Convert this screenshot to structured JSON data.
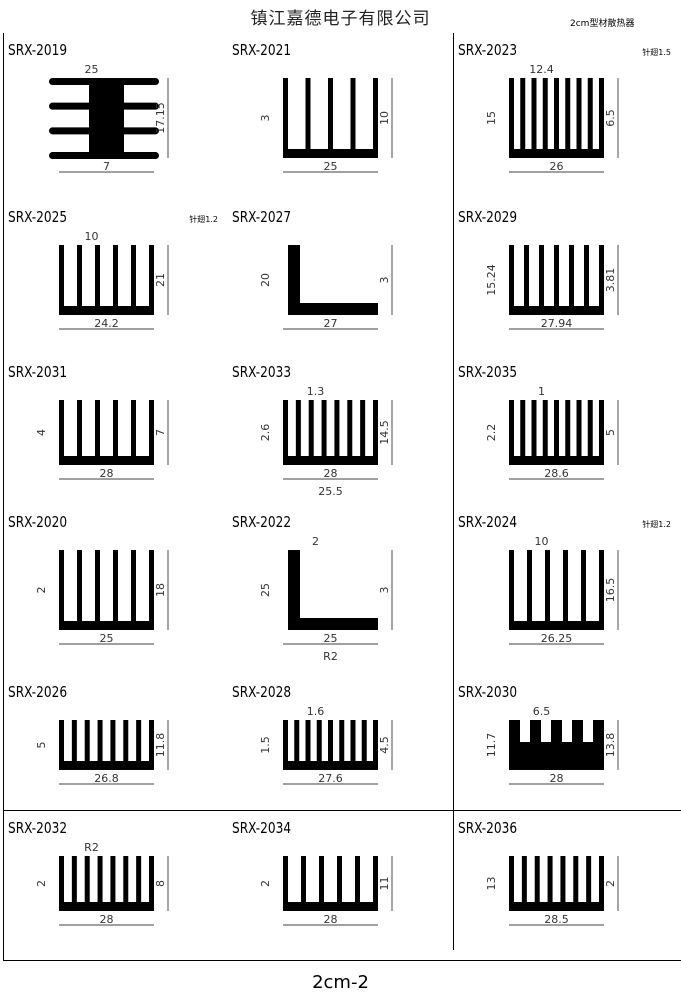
{
  "header": {
    "company": "镇江嘉德电子有限公司",
    "subtitle": "2cm型材散热器"
  },
  "footer": {
    "page": "2cm-2"
  },
  "items": [
    {
      "model": "SRX-2019",
      "note": "",
      "shape": "hfins",
      "fins": 4,
      "dims": [
        "7",
        "17.15",
        "25"
      ]
    },
    {
      "model": "SRX-2025",
      "note": "针翅1.2",
      "shape": "comb",
      "fins": 6,
      "dims": [
        "24.2",
        "21",
        "10"
      ]
    },
    {
      "model": "SRX-2031",
      "note": "",
      "shape": "comb",
      "fins": 6,
      "dims": [
        "28",
        "7",
        "",
        "4"
      ]
    },
    {
      "model": "SRX-2020",
      "note": "",
      "shape": "comb",
      "fins": 6,
      "dims": [
        "25",
        "18",
        "",
        "2"
      ]
    },
    {
      "model": "SRX-2026",
      "note": "",
      "shape": "comb",
      "fins": 8,
      "dims": [
        "26.8",
        "11.8",
        "",
        "5"
      ]
    },
    {
      "model": "SRX-2032",
      "note": "",
      "shape": "comb",
      "fins": 8,
      "dims": [
        "28",
        "8",
        "R2",
        "2"
      ]
    },
    {
      "model": "SRX-2021",
      "note": "",
      "shape": "comb",
      "fins": 5,
      "dims": [
        "25",
        "10",
        "",
        "3"
      ]
    },
    {
      "model": "SRX-2027",
      "note": "",
      "shape": "L",
      "fins": 0,
      "dims": [
        "27",
        "3",
        "",
        "20"
      ]
    },
    {
      "model": "SRX-2033",
      "note": "",
      "shape": "comb",
      "fins": 8,
      "dims": [
        "28",
        "14.5",
        "1.3",
        "2.6",
        "25.5"
      ]
    },
    {
      "model": "SRX-2022",
      "note": "",
      "shape": "L",
      "fins": 0,
      "dims": [
        "25",
        "3",
        "2",
        "25",
        "R2"
      ]
    },
    {
      "model": "SRX-2028",
      "note": "",
      "shape": "comb",
      "fins": 9,
      "dims": [
        "27.6",
        "4.5",
        "1.6",
        "1.5"
      ]
    },
    {
      "model": "SRX-2034",
      "note": "",
      "shape": "comb",
      "fins": 6,
      "dims": [
        "28",
        "11",
        "",
        "2"
      ]
    },
    {
      "model": "SRX-2023",
      "note": "针翅1.5",
      "shape": "comb",
      "fins": 9,
      "dims": [
        "26",
        "6.5",
        "12.4",
        "15"
      ]
    },
    {
      "model": "SRX-2029",
      "note": "",
      "shape": "comb",
      "fins": 7,
      "dims": [
        "27.94",
        "3.81",
        "",
        "15.24"
      ]
    },
    {
      "model": "SRX-2035",
      "note": "",
      "shape": "comb",
      "fins": 9,
      "dims": [
        "28.6",
        "5",
        "1",
        "2.2"
      ]
    },
    {
      "model": "SRX-2024",
      "note": "针翅1.2",
      "shape": "comb",
      "fins": 6,
      "dims": [
        "26.25",
        "16.5",
        "10"
      ]
    },
    {
      "model": "SRX-2030",
      "note": "",
      "shape": "block",
      "fins": 5,
      "dims": [
        "28",
        "13.8",
        "6.5",
        "11.7"
      ]
    },
    {
      "model": "SRX-2036",
      "note": "",
      "shape": "comb",
      "fins": 8,
      "dims": [
        "28.5",
        "2",
        "",
        "13"
      ]
    }
  ]
}
